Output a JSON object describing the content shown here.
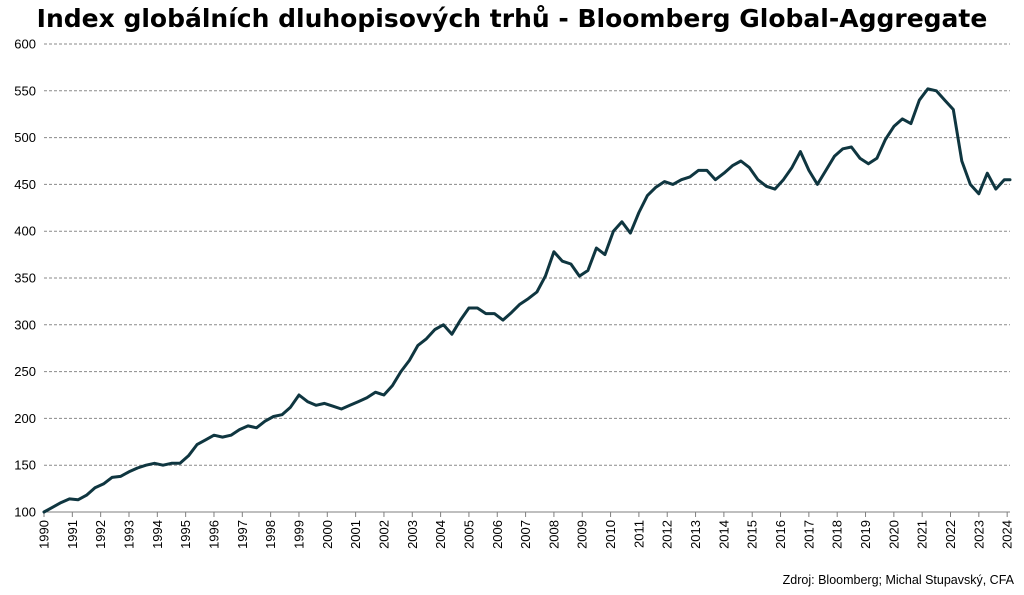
{
  "source": "Zdroj: Bloomberg; Michal Stupavský, CFA",
  "chart_data": {
    "type": "line",
    "title": "Index globálních dluhopisových trhů - Bloomberg Global-Aggregate",
    "xlabel": "",
    "ylabel": "",
    "xlim": [
      1990,
      2024.1
    ],
    "ylim": [
      100,
      600
    ],
    "y_ticks": [
      "100",
      "150",
      "200",
      "250",
      "300",
      "350",
      "400",
      "450",
      "500",
      "550",
      "600"
    ],
    "x_ticks": [
      "1990",
      "1991",
      "1992",
      "1993",
      "1994",
      "1995",
      "1996",
      "1997",
      "1998",
      "1999",
      "2000",
      "2001",
      "2002",
      "2003",
      "2004",
      "2005",
      "2006",
      "2007",
      "2008",
      "2009",
      "2010",
      "2011",
      "2012",
      "2013",
      "2014",
      "2015",
      "2016",
      "2017",
      "2018",
      "2019",
      "2020",
      "2021",
      "2022",
      "2023",
      "2024"
    ],
    "grid": "horizontal-dashed",
    "line_color": "#0f3640",
    "series": [
      {
        "x": [
          1990.0,
          1990.3,
          1990.6,
          1990.9,
          1991.2,
          1991.5,
          1991.8,
          1992.1,
          1992.4,
          1992.7,
          1993.0,
          1993.3,
          1993.6,
          1993.9,
          1994.2,
          1994.5,
          1994.8,
          1995.1,
          1995.4,
          1995.7,
          1996.0,
          1996.3,
          1996.6,
          1996.9,
          1997.2,
          1997.5,
          1997.8,
          1998.1,
          1998.4,
          1998.7,
          1999.0,
          1999.3,
          1999.6,
          1999.9,
          2000.2,
          2000.5,
          2000.8,
          2001.1,
          2001.4,
          2001.7,
          2002.0,
          2002.3,
          2002.6,
          2002.9,
          2003.2,
          2003.5,
          2003.8,
          2004.1,
          2004.4,
          2004.7,
          2005.0,
          2005.3,
          2005.6,
          2005.9,
          2006.2,
          2006.5,
          2006.8,
          2007.1,
          2007.4,
          2007.7,
          2008.0,
          2008.3,
          2008.6,
          2008.9,
          2009.2,
          2009.5,
          2009.8,
          2010.1,
          2010.4,
          2010.7,
          2011.0,
          2011.3,
          2011.6,
          2011.9,
          2012.2,
          2012.5,
          2012.8,
          2013.1,
          2013.4,
          2013.7,
          2014.0,
          2014.3,
          2014.6,
          2014.9,
          2015.2,
          2015.5,
          2015.8,
          2016.1,
          2016.4,
          2016.7,
          2017.0,
          2017.3,
          2017.6,
          2017.9,
          2018.2,
          2018.5,
          2018.8,
          2019.1,
          2019.4,
          2019.7,
          2020.0,
          2020.3,
          2020.6,
          2020.9,
          2021.2,
          2021.5,
          2021.8,
          2022.1,
          2022.4,
          2022.7,
          2023.0,
          2023.3,
          2023.6,
          2023.9,
          2024.1
        ],
        "values": [
          100,
          105,
          110,
          114,
          113,
          118,
          126,
          130,
          137,
          138,
          143,
          147,
          150,
          152,
          150,
          152,
          152,
          160,
          172,
          177,
          182,
          180,
          182,
          188,
          192,
          190,
          197,
          202,
          204,
          212,
          225,
          218,
          214,
          216,
          213,
          210,
          214,
          218,
          222,
          228,
          225,
          235,
          250,
          262,
          278,
          285,
          295,
          300,
          290,
          305,
          318,
          318,
          312,
          312,
          305,
          313,
          322,
          328,
          335,
          352,
          378,
          368,
          365,
          352,
          358,
          382,
          375,
          400,
          410,
          398,
          420,
          438,
          447,
          453,
          450,
          455,
          458,
          465,
          465,
          455,
          462,
          470,
          475,
          468,
          455,
          448,
          445,
          455,
          468,
          485,
          465,
          450,
          465,
          480,
          488,
          490,
          478,
          472,
          478,
          498,
          512,
          520,
          515,
          540,
          552,
          550,
          540,
          530,
          475,
          450,
          440,
          462,
          445,
          455,
          455
        ]
      }
    ]
  }
}
